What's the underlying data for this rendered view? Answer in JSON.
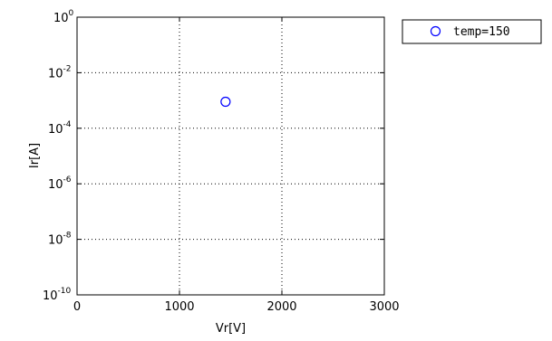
{
  "chart_data": {
    "type": "scatter",
    "xlabel": "Vr[V]",
    "ylabel": "Ir[A]",
    "xlim": [
      0,
      3000
    ],
    "ylim": [
      1e-10,
      1
    ],
    "yscale": "log",
    "xticks": [
      0,
      1000,
      2000,
      3000
    ],
    "xtick_labels": [
      "0",
      "1000",
      "2000",
      "3000"
    ],
    "yticks": [
      {
        "value": 1e-10,
        "base": "10",
        "exp": "-10"
      },
      {
        "value": 1e-08,
        "base": "10",
        "exp": "-8"
      },
      {
        "value": 1e-06,
        "base": "10",
        "exp": "-6"
      },
      {
        "value": 0.0001,
        "base": "10",
        "exp": "-4"
      },
      {
        "value": 0.01,
        "base": "10",
        "exp": "-2"
      },
      {
        "value": 1,
        "base": "10",
        "exp": "0"
      }
    ],
    "grid": true,
    "legend_position": "outside-top-right",
    "series": [
      {
        "name": "temp=150",
        "marker": "circle",
        "color": "#0000ff",
        "points": [
          {
            "x": 1450,
            "y": 0.0009
          }
        ]
      }
    ]
  }
}
